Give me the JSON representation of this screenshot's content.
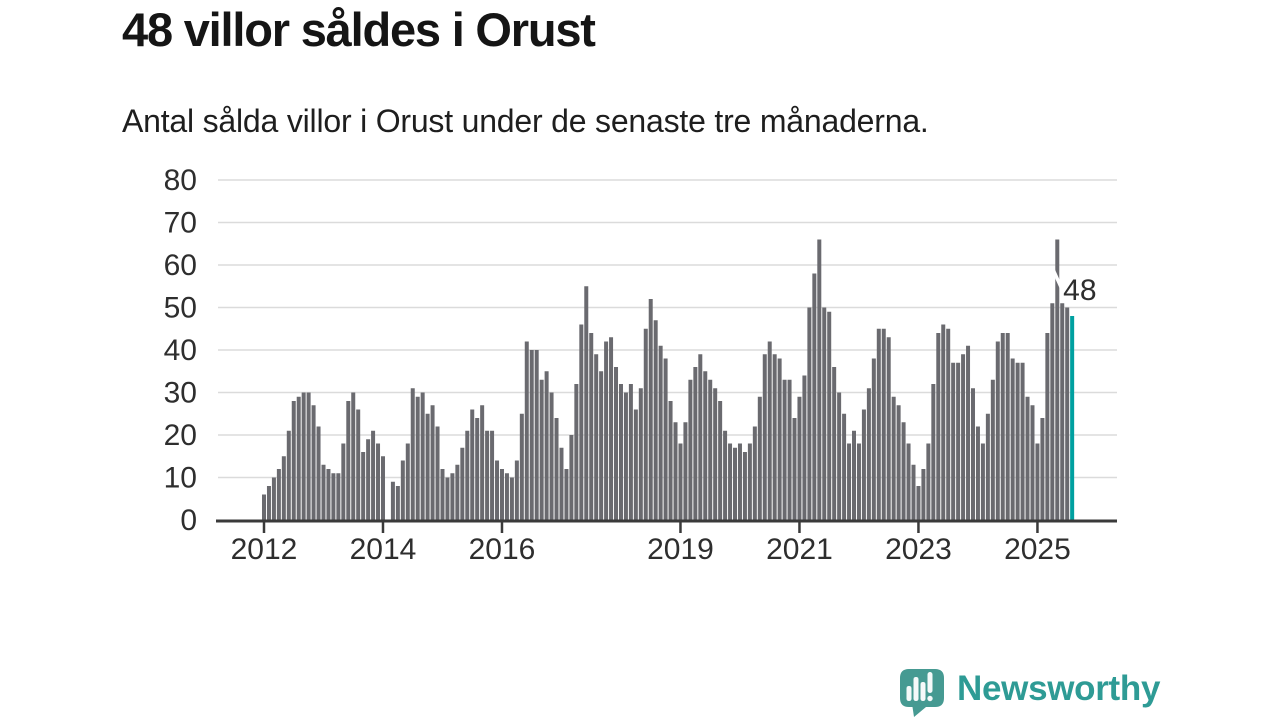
{
  "header": {
    "title": "48 villor såldes i Orust",
    "subtitle": "Antal sålda villor i Orust under de senaste tre månaderna."
  },
  "footer": {
    "brand": "Newsworthy",
    "logo_icon": "speech-bubble-bar-chart-icon"
  },
  "chart_data": {
    "type": "bar",
    "title": "48 villor såldes i Orust",
    "subtitle": "Antal sålda villor i Orust under de senaste tre månaderna.",
    "x_unit": "month",
    "x_start": "2012-01",
    "x_end": "2025-08",
    "frequency": "monthly (rolling 3-month count)",
    "ylim": [
      0,
      80
    ],
    "yticks": [
      0,
      10,
      20,
      30,
      40,
      50,
      60,
      70,
      80
    ],
    "xtick_labels": [
      "2012",
      "2014",
      "2016",
      "2019",
      "2021",
      "2023",
      "2025"
    ],
    "grid": "horizontal",
    "legend": "none",
    "bar_color": "#6A6A6F",
    "axis_color": "#3A3A3A",
    "gridline_color": "#DBDBDB",
    "values_by_year": {
      "2012": [
        6,
        8,
        10,
        12,
        15,
        21,
        28,
        29,
        30,
        30,
        27,
        22
      ],
      "2013": [
        13,
        12,
        11,
        11,
        18,
        28,
        30,
        26,
        16,
        19,
        21,
        18
      ],
      "2014": [
        15,
        0,
        9,
        8,
        14,
        18,
        31,
        29,
        30,
        25,
        27,
        22
      ],
      "2015": [
        12,
        10,
        11,
        13,
        17,
        21,
        26,
        24,
        27,
        21,
        21,
        14
      ],
      "2016": [
        12,
        11,
        10,
        14,
        25,
        42,
        40,
        40,
        33,
        35,
        30,
        24
      ],
      "2017": [
        17,
        12,
        20,
        32,
        46,
        55,
        44,
        39,
        35,
        42,
        43,
        36
      ],
      "2018": [
        32,
        30,
        32,
        26,
        31,
        45,
        52,
        47,
        41,
        38,
        28,
        23
      ],
      "2019": [
        18,
        23,
        33,
        36,
        39,
        35,
        33,
        31,
        28,
        21,
        18,
        17
      ],
      "2020": [
        18,
        16,
        18,
        22,
        29,
        39,
        42,
        39,
        38,
        33,
        33,
        24
      ],
      "2021": [
        29,
        34,
        50,
        58,
        66,
        50,
        49,
        36,
        30,
        25,
        18,
        21
      ],
      "2022": [
        18,
        26,
        31,
        38,
        45,
        45,
        43,
        29,
        27,
        23,
        18,
        13
      ],
      "2023": [
        8,
        12,
        18,
        32,
        44,
        46,
        45,
        37,
        37,
        39,
        41,
        31
      ],
      "2024": [
        22,
        18,
        25,
        33,
        42,
        44,
        44,
        38,
        37,
        37,
        29,
        27
      ],
      "2025": [
        18,
        24,
        44,
        51,
        66,
        51,
        50,
        48
      ]
    },
    "highlight_last_bar": {
      "value": 48,
      "label": "48",
      "color": "#00A0A0"
    },
    "annotation_slash_bar_index": 160
  }
}
